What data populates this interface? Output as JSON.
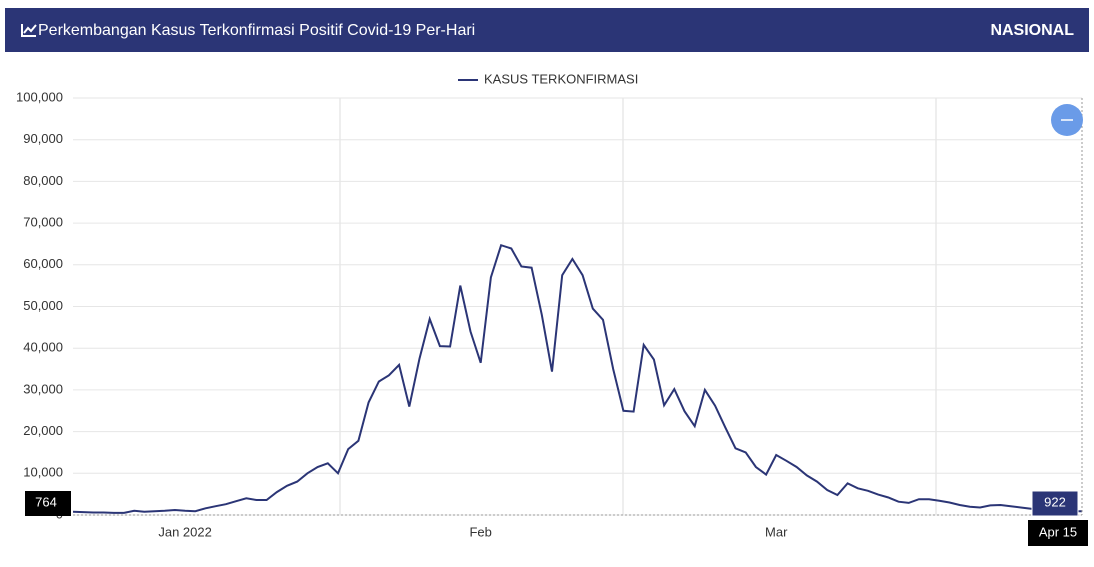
{
  "header": {
    "title": "Perkembangan Kasus Terkonfirmasi Positif Covid-19 Per-Hari",
    "region": "NASIONAL"
  },
  "chart_data": {
    "type": "line",
    "categories": [
      null,
      null,
      null,
      null,
      null,
      null,
      null,
      null,
      null,
      null,
      null,
      "Jan 2022",
      null,
      null,
      null,
      null,
      null,
      null,
      null,
      null,
      null,
      null,
      null,
      null,
      null,
      null,
      null,
      null,
      null,
      null,
      null,
      null,
      null,
      null,
      null,
      null,
      null,
      null,
      null,
      null,
      "Feb",
      null,
      null,
      null,
      null,
      null,
      null,
      null,
      null,
      null,
      null,
      null,
      null,
      null,
      null,
      null,
      null,
      null,
      null,
      null,
      null,
      null,
      null,
      null,
      null,
      null,
      null,
      null,
      null,
      "Mar",
      null,
      null,
      null,
      null,
      null,
      null,
      null,
      null,
      null,
      null,
      null,
      null,
      null,
      null,
      null,
      null,
      null,
      null,
      null,
      null,
      null,
      null,
      null,
      null,
      null,
      null,
      null,
      null,
      null,
      "Apr 15"
    ],
    "series": [
      {
        "name": "KASUS TERKONFIRMASI",
        "color": "#2b3576",
        "values": [
          764,
          700,
          600,
          600,
          500,
          500,
          1000,
          800,
          900,
          1000,
          1200,
          1000,
          900,
          1600,
          2100,
          2600,
          3300,
          4000,
          3600,
          3600,
          5500,
          7000,
          8000,
          10000,
          11500,
          12400,
          10000,
          15800,
          17800,
          27000,
          32000,
          33500,
          36000,
          26000,
          37500,
          47000,
          40500,
          40400,
          55000,
          44000,
          36500,
          57000,
          64700,
          63900,
          59600,
          59300,
          48000,
          34400,
          57500,
          61400,
          57500,
          49500,
          46800,
          35000,
          25000,
          24800,
          40800,
          37300,
          26300,
          30200,
          24900,
          21300,
          30000,
          26200,
          21000,
          16000,
          15000,
          11500,
          9700,
          14400,
          13000,
          11500,
          9500,
          8000,
          6000,
          4800,
          7600,
          6400,
          5800,
          4900,
          4200,
          3200,
          2900,
          3800,
          3800,
          3400,
          3000,
          2400,
          2000,
          1800,
          2300,
          2400,
          2100,
          1800,
          1500,
          1100,
          900,
          1000,
          900,
          922
        ]
      }
    ],
    "ylim": [
      0,
      100000
    ],
    "yticks": [
      0,
      {
        "value": 10000,
        "label": "10,000"
      },
      {
        "value": 20000,
        "label": "20,000"
      },
      {
        "value": 30000,
        "label": "30,000"
      },
      {
        "value": 40000,
        "label": "40,000"
      },
      {
        "value": 50000,
        "label": "50,000"
      },
      {
        "value": 60000,
        "label": "60,000"
      },
      {
        "value": 70000,
        "label": "70,000"
      },
      {
        "value": 80000,
        "label": "80,000"
      },
      {
        "value": 90000,
        "label": "90,000"
      },
      {
        "value": 100000,
        "label": "100,000"
      }
    ],
    "grid": true
  }
}
